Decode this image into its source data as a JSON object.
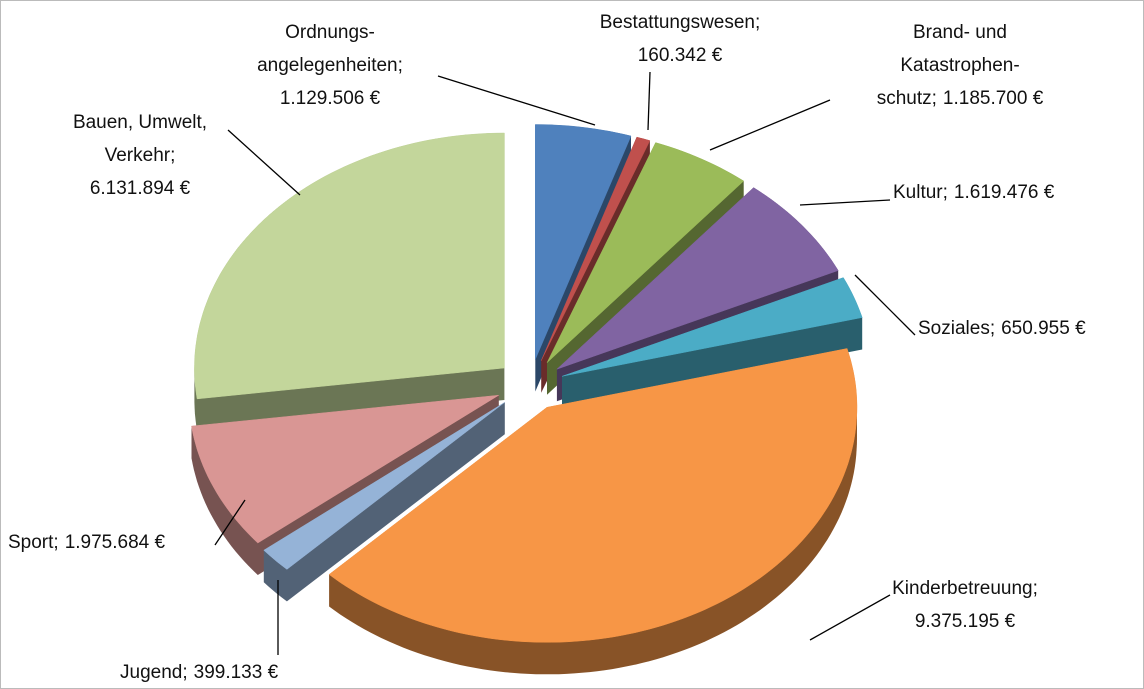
{
  "chart_data": {
    "type": "pie3d",
    "categories": [
      "Ordnungs-\nangelegenheiten;",
      "Bestattungswesen;",
      "Brand- und\nKatastrophen-\nschutz;",
      "Kultur;",
      "Soziales;",
      "Kinderbetreuung;",
      "Jugend;",
      "Sport;",
      "Bauen, Umwelt,\nVerkehr;"
    ],
    "values": [
      1129506,
      160342,
      1185700,
      1619476,
      650955,
      9375195,
      399133,
      1975684,
      6131894
    ],
    "value_labels": [
      "1.129.506 €",
      "160.342 €",
      "1.185.700 €",
      "1.619.476 €",
      "650.955 €",
      "9.375.195 €",
      "399.133 €",
      "1.975.684 €",
      "6.131.894 €"
    ],
    "colors": [
      "#4f81bd",
      "#c0504d",
      "#9bbb59",
      "#8064a2",
      "#4bacc6",
      "#f79646",
      "#95b3d7",
      "#d99694",
      "#c3d69b"
    ]
  }
}
